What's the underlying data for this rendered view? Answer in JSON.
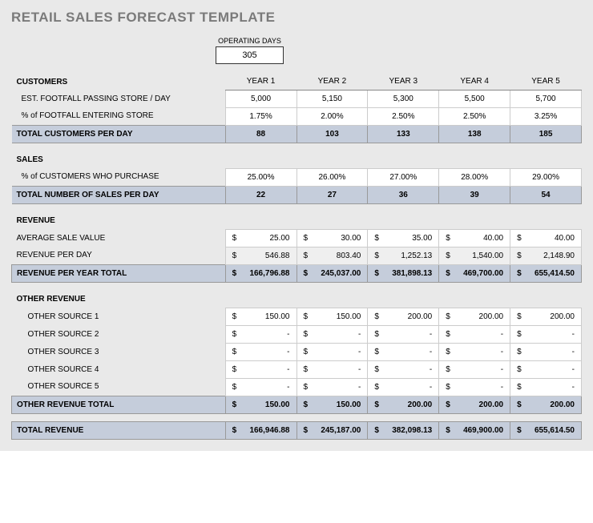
{
  "title": "RETAIL SALES FORECAST TEMPLATE",
  "operating_days": {
    "label": "OPERATING DAYS",
    "value": "305"
  },
  "years": [
    "YEAR 1",
    "YEAR 2",
    "YEAR 3",
    "YEAR 4",
    "YEAR 5"
  ],
  "customers": {
    "heading": "CUSTOMERS",
    "footfall_label": "EST. FOOTFALL PASSING STORE / DAY",
    "footfall": [
      "5,000",
      "5,150",
      "5,300",
      "5,500",
      "5,700"
    ],
    "pct_enter_label": "% of FOOTFALL ENTERING STORE",
    "pct_enter": [
      "1.75%",
      "2.00%",
      "2.50%",
      "2.50%",
      "3.25%"
    ],
    "total_label": "TOTAL CUSTOMERS PER DAY",
    "total": [
      "88",
      "103",
      "133",
      "138",
      "185"
    ]
  },
  "sales": {
    "heading": "SALES",
    "pct_purchase_label": "% of CUSTOMERS WHO PURCHASE",
    "pct_purchase": [
      "25.00%",
      "26.00%",
      "27.00%",
      "28.00%",
      "29.00%"
    ],
    "total_label": "TOTAL NUMBER OF SALES PER DAY",
    "total": [
      "22",
      "27",
      "36",
      "39",
      "54"
    ]
  },
  "revenue": {
    "heading": "REVENUE",
    "avg_sale_label": "AVERAGE SALE VALUE",
    "avg_sale": [
      "25.00",
      "30.00",
      "35.00",
      "40.00",
      "40.00"
    ],
    "per_day_label": "REVENUE PER DAY",
    "per_day": [
      "546.88",
      "803.40",
      "1,252.13",
      "1,540.00",
      "2,148.90"
    ],
    "per_year_label": "REVENUE PER YEAR TOTAL",
    "per_year": [
      "166,796.88",
      "245,037.00",
      "381,898.13",
      "469,700.00",
      "655,414.50"
    ]
  },
  "other_revenue": {
    "heading": "OTHER REVENUE",
    "sources": [
      {
        "label": "OTHER SOURCE 1",
        "values": [
          "150.00",
          "150.00",
          "200.00",
          "200.00",
          "200.00"
        ]
      },
      {
        "label": "OTHER SOURCE 2",
        "values": [
          "-",
          "-",
          "-",
          "-",
          "-"
        ]
      },
      {
        "label": "OTHER SOURCE 3",
        "values": [
          "-",
          "-",
          "-",
          "-",
          "-"
        ]
      },
      {
        "label": "OTHER SOURCE 4",
        "values": [
          "-",
          "-",
          "-",
          "-",
          "-"
        ]
      },
      {
        "label": "OTHER SOURCE 5",
        "values": [
          "-",
          "-",
          "-",
          "-",
          "-"
        ]
      }
    ],
    "total_label": "OTHER REVENUE TOTAL",
    "total": [
      "150.00",
      "150.00",
      "200.00",
      "200.00",
      "200.00"
    ]
  },
  "total_revenue": {
    "label": "TOTAL REVENUE",
    "values": [
      "166,946.88",
      "245,187.00",
      "382,098.13",
      "469,900.00",
      "655,614.50"
    ]
  },
  "currency": "$"
}
